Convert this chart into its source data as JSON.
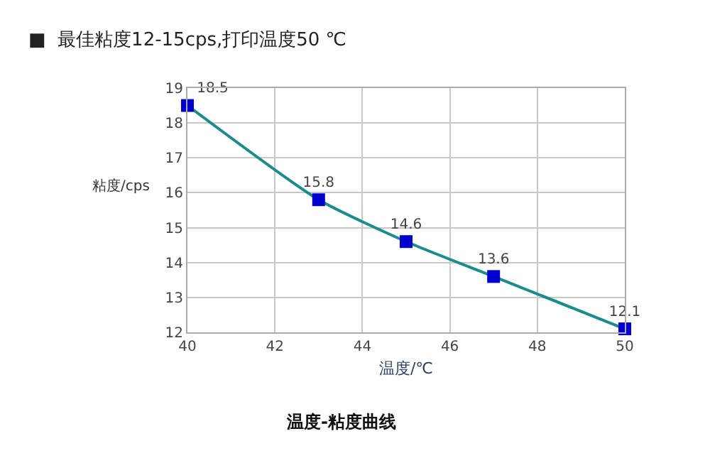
{
  "chart_data": {
    "type": "line",
    "title": "■  最佳粘度12-15cps,打印温度50 ℃",
    "xlabel": "温度/℃",
    "ylabel": "粘度/cps",
    "annotations": [
      "温度-粘度曲线"
    ],
    "x": [
      40,
      43,
      45,
      47,
      50
    ],
    "series": [
      {
        "color": "#1a8c8c",
        "colors": [
          "#0000cc",
          "#0000cc",
          "#0000cc",
          "#0000cc",
          "#0000cc"
        ],
        "values": [
          18.5,
          15.8,
          14.6,
          13.6,
          12.1
        ]
      }
    ],
    "xlim": [
      40,
      50
    ],
    "xticks": [
      40,
      42,
      44,
      46,
      48,
      50
    ],
    "ylim": [
      12,
      19
    ],
    "yticks": [
      12,
      13,
      14,
      15,
      16,
      17,
      18,
      19
    ],
    "grid": true,
    "marker": "square",
    "line_style": "solid",
    "data_labels": true,
    "legend": false
  }
}
